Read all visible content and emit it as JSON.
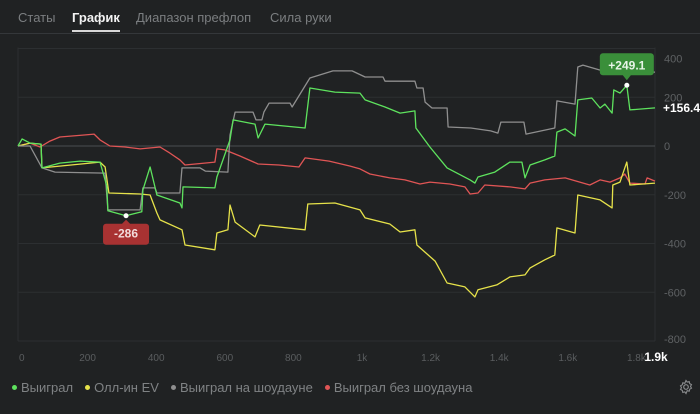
{
  "tabs": [
    "Статы",
    "График",
    "Диапазон префлоп",
    "Сила руки"
  ],
  "active_tab": "График",
  "colors": {
    "won": "#5ee35e",
    "allin_ev": "#e6e24a",
    "showdown": "#8f8f8f",
    "non_showdown": "#e05555",
    "min_badge": "#a83232",
    "max_badge": "#3a8f3a"
  },
  "chart_data": {
    "type": "line",
    "xlabel": "",
    "ylabel": "",
    "xlim": [
      0,
      1900
    ],
    "ylim": [
      -800,
      400
    ],
    "x_ticks": [
      "0",
      "200",
      "400",
      "600",
      "800",
      "1k",
      "1.2k",
      "1.4k",
      "1.6k",
      "1.8k"
    ],
    "x_tick_values": [
      0,
      200,
      400,
      600,
      800,
      1000,
      1200,
      1400,
      1600,
      1800
    ],
    "x_end_label": "1.9k",
    "y_ticks": [
      "400",
      "200",
      "0",
      "-200",
      "-400",
      "-600",
      "-800"
    ],
    "y_tick_values": [
      400,
      200,
      0,
      -200,
      -400,
      -600,
      -800
    ],
    "grid": true,
    "legend_position": "bottom-left",
    "annotations": {
      "min_label": "-286",
      "min_point": [
        315,
        -286
      ],
      "max_label": "+249.1",
      "max_point": [
        1775,
        249.1
      ],
      "end_label": "+156.4"
    },
    "series": [
      {
        "name": "Выиграл",
        "color": "#5ee35e",
        "points": [
          [
            0,
            0
          ],
          [
            12,
            29
          ],
          [
            35,
            12
          ],
          [
            67,
            8
          ],
          [
            70,
            -90
          ],
          [
            122,
            -70
          ],
          [
            181,
            -62
          ],
          [
            239,
            -66
          ],
          [
            259,
            -164
          ],
          [
            262,
            -266
          ],
          [
            315,
            -286
          ],
          [
            361,
            -270
          ],
          [
            364,
            -180
          ],
          [
            385,
            -86
          ],
          [
            405,
            -201
          ],
          [
            472,
            -234
          ],
          [
            478,
            -254
          ],
          [
            481,
            -168
          ],
          [
            574,
            -172
          ],
          [
            580,
            -127
          ],
          [
            618,
            25
          ],
          [
            627,
            107
          ],
          [
            691,
            90
          ],
          [
            700,
            33
          ],
          [
            720,
            90
          ],
          [
            837,
            74
          ],
          [
            851,
            238
          ],
          [
            924,
            221
          ],
          [
            997,
            217
          ],
          [
            1012,
            189
          ],
          [
            1070,
            160
          ],
          [
            1114,
            135
          ],
          [
            1157,
            144
          ],
          [
            1160,
            74
          ],
          [
            1201,
            -4
          ],
          [
            1251,
            -90
          ],
          [
            1318,
            -139
          ],
          [
            1332,
            -152
          ],
          [
            1341,
            -127
          ],
          [
            1390,
            -107
          ],
          [
            1434,
            -66
          ],
          [
            1469,
            -66
          ],
          [
            1478,
            -131
          ],
          [
            1493,
            -78
          ],
          [
            1536,
            -57
          ],
          [
            1565,
            -41
          ],
          [
            1571,
            57
          ],
          [
            1595,
            70
          ],
          [
            1624,
            41
          ],
          [
            1632,
            189
          ],
          [
            1673,
            197
          ],
          [
            1697,
            156
          ],
          [
            1711,
            172
          ],
          [
            1732,
            135
          ],
          [
            1737,
            230
          ],
          [
            1755,
            217
          ],
          [
            1775,
            249.1
          ],
          [
            1784,
            148
          ],
          [
            1857,
            156.4
          ]
        ]
      },
      {
        "name": "Олл-ин EV",
        "color": "#e6e24a",
        "points": [
          [
            0,
            0
          ],
          [
            35,
            12
          ],
          [
            67,
            8
          ],
          [
            70,
            -90
          ],
          [
            239,
            -66
          ],
          [
            254,
            -86
          ],
          [
            265,
            -193
          ],
          [
            356,
            -197
          ],
          [
            385,
            -201
          ],
          [
            405,
            -275
          ],
          [
            414,
            -303
          ],
          [
            478,
            -344
          ],
          [
            487,
            -406
          ],
          [
            574,
            -426
          ],
          [
            580,
            -357
          ],
          [
            612,
            -344
          ],
          [
            618,
            -242
          ],
          [
            633,
            -312
          ],
          [
            691,
            -373
          ],
          [
            705,
            -324
          ],
          [
            837,
            -344
          ],
          [
            845,
            -238
          ],
          [
            924,
            -234
          ],
          [
            997,
            -262
          ],
          [
            1012,
            -295
          ],
          [
            1084,
            -320
          ],
          [
            1114,
            -353
          ],
          [
            1157,
            -344
          ],
          [
            1163,
            -406
          ],
          [
            1216,
            -472
          ],
          [
            1251,
            -562
          ],
          [
            1303,
            -578
          ],
          [
            1332,
            -619
          ],
          [
            1341,
            -590
          ],
          [
            1396,
            -570
          ],
          [
            1434,
            -537
          ],
          [
            1478,
            -529
          ],
          [
            1493,
            -500
          ],
          [
            1536,
            -467
          ],
          [
            1565,
            -447
          ],
          [
            1571,
            -336
          ],
          [
            1624,
            -357
          ],
          [
            1632,
            -201
          ],
          [
            1697,
            -221
          ],
          [
            1732,
            -254
          ],
          [
            1734,
            -160
          ],
          [
            1755,
            -148
          ],
          [
            1775,
            -66
          ],
          [
            1784,
            -160
          ],
          [
            1857,
            -152
          ]
        ]
      },
      {
        "name": "Выиграл на шоудауне",
        "color": "#8f8f8f",
        "points": [
          [
            0,
            0
          ],
          [
            35,
            0
          ],
          [
            70,
            -90
          ],
          [
            108,
            -107
          ],
          [
            254,
            -111
          ],
          [
            262,
            -262
          ],
          [
            356,
            -262
          ],
          [
            364,
            -172
          ],
          [
            399,
            -172
          ],
          [
            405,
            -193
          ],
          [
            472,
            -193
          ],
          [
            478,
            -90
          ],
          [
            531,
            -90
          ],
          [
            546,
            -103
          ],
          [
            612,
            -107
          ],
          [
            618,
            45
          ],
          [
            633,
            139
          ],
          [
            685,
            139
          ],
          [
            694,
            107
          ],
          [
            711,
            107
          ],
          [
            717,
            139
          ],
          [
            732,
            176
          ],
          [
            793,
            176
          ],
          [
            799,
            160
          ],
          [
            851,
            279
          ],
          [
            918,
            308
          ],
          [
            974,
            308
          ],
          [
            1012,
            283
          ],
          [
            1064,
            283
          ],
          [
            1070,
            266
          ],
          [
            1157,
            266
          ],
          [
            1163,
            238
          ],
          [
            1181,
            238
          ],
          [
            1187,
            180
          ],
          [
            1207,
            156
          ],
          [
            1251,
            156
          ],
          [
            1254,
            78
          ],
          [
            1320,
            74
          ],
          [
            1378,
            62
          ],
          [
            1399,
            53
          ],
          [
            1408,
            98
          ],
          [
            1475,
            98
          ],
          [
            1481,
            49
          ],
          [
            1565,
            74
          ],
          [
            1571,
            185
          ],
          [
            1624,
            172
          ],
          [
            1632,
            324
          ],
          [
            1647,
            332
          ],
          [
            1696,
            312
          ],
          [
            1734,
            303
          ],
          [
            1857,
            303
          ]
        ]
      },
      {
        "name": "Выиграл без шоудауна",
        "color": "#e05555",
        "points": [
          [
            0,
            0
          ],
          [
            35,
            12
          ],
          [
            64,
            -4
          ],
          [
            93,
            20
          ],
          [
            122,
            37
          ],
          [
            193,
            45
          ],
          [
            222,
            49
          ],
          [
            239,
            25
          ],
          [
            268,
            0
          ],
          [
            312,
            -4
          ],
          [
            356,
            -12
          ],
          [
            414,
            -4
          ],
          [
            443,
            -29
          ],
          [
            472,
            -57
          ],
          [
            487,
            -78
          ],
          [
            574,
            -66
          ],
          [
            580,
            -12
          ],
          [
            603,
            -16
          ],
          [
            647,
            -41
          ],
          [
            700,
            -74
          ],
          [
            761,
            -78
          ],
          [
            819,
            -86
          ],
          [
            837,
            -49
          ],
          [
            907,
            -62
          ],
          [
            967,
            -82
          ],
          [
            997,
            -94
          ],
          [
            1026,
            -115
          ],
          [
            1084,
            -131
          ],
          [
            1128,
            -139
          ],
          [
            1172,
            -156
          ],
          [
            1201,
            -148
          ],
          [
            1259,
            -156
          ],
          [
            1303,
            -168
          ],
          [
            1318,
            -197
          ],
          [
            1341,
            -193
          ],
          [
            1361,
            -160
          ],
          [
            1434,
            -168
          ],
          [
            1478,
            -176
          ],
          [
            1493,
            -152
          ],
          [
            1536,
            -139
          ],
          [
            1595,
            -131
          ],
          [
            1638,
            -148
          ],
          [
            1667,
            -160
          ],
          [
            1697,
            -139
          ],
          [
            1726,
            -148
          ],
          [
            1755,
            -131
          ],
          [
            1769,
            -115
          ],
          [
            1784,
            -152
          ],
          [
            1828,
            -156
          ],
          [
            1834,
            -131
          ],
          [
            1857,
            -144
          ]
        ]
      }
    ]
  }
}
